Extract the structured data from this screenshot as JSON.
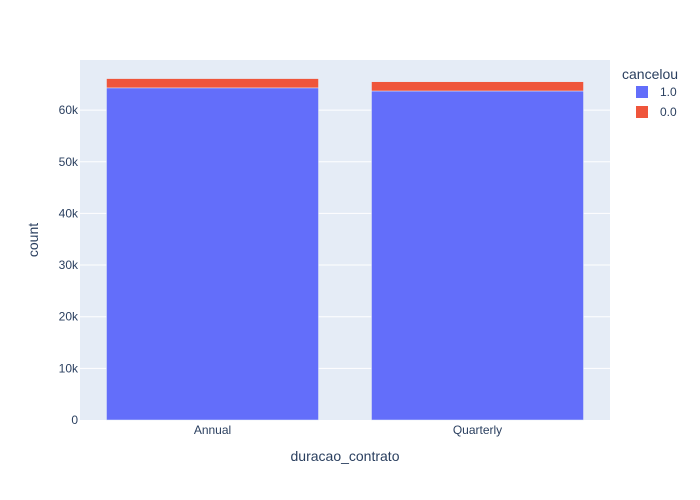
{
  "chart_data": {
    "type": "bar",
    "stacked": true,
    "categories": [
      "Annual",
      "Quarterly"
    ],
    "series": [
      {
        "name": "1.0",
        "values": [
          64300,
          63700
        ],
        "color": "#636efa"
      },
      {
        "name": "0.0",
        "values": [
          1800,
          1800
        ],
        "color": "#ef553b"
      }
    ],
    "xlabel": "duracao_contrato",
    "ylabel": "count",
    "ylim": [
      0,
      69700
    ],
    "yticks": [
      0,
      10000,
      20000,
      30000,
      40000,
      50000,
      60000
    ],
    "ytick_labels": [
      "0",
      "10k",
      "20k",
      "30k",
      "40k",
      "50k",
      "60k"
    ],
    "legend_title": "cancelou",
    "legend_position": "top-right",
    "grid": true,
    "plot_background": "#e5ecf6"
  }
}
